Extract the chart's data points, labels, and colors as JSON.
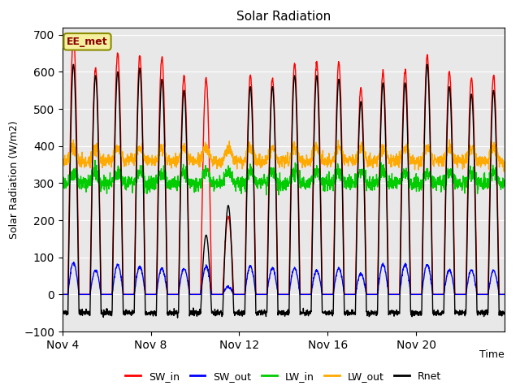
{
  "title": "Solar Radiation",
  "xlabel": "Time",
  "ylabel": "Solar Radiation (W/m2)",
  "ylim": [
    -100,
    720
  ],
  "yticks": [
    -100,
    0,
    100,
    200,
    300,
    400,
    500,
    600,
    700
  ],
  "background_color": "#e8e8e8",
  "figure_bg": "#ffffff",
  "annotation_text": "EE_met",
  "legend_entries": [
    "SW_in",
    "SW_out",
    "LW_in",
    "LW_out",
    "Rnet"
  ],
  "line_colors": [
    "#ff0000",
    "#0000ff",
    "#00cc00",
    "#ffaa00",
    "#000000"
  ],
  "n_days": 20,
  "points_per_day": 96,
  "SW_in_peaks": [
    700,
    610,
    650,
    645,
    640,
    590,
    580,
    210,
    590,
    580,
    620,
    625,
    625,
    555,
    600,
    605,
    645,
    600,
    585,
    590
  ],
  "SW_out_peaks": [
    85,
    65,
    80,
    75,
    70,
    70,
    75,
    20,
    75,
    70,
    70,
    65,
    70,
    55,
    80,
    80,
    80,
    65,
    65,
    65
  ],
  "LW_in_base": 300,
  "LW_out_base": 360,
  "Rnet_night": -50,
  "Rnet_day_peaks": [
    620,
    590,
    600,
    610,
    580,
    550,
    160,
    240,
    560,
    560,
    590,
    590,
    580,
    520,
    570,
    570,
    620,
    560,
    540,
    550
  ]
}
